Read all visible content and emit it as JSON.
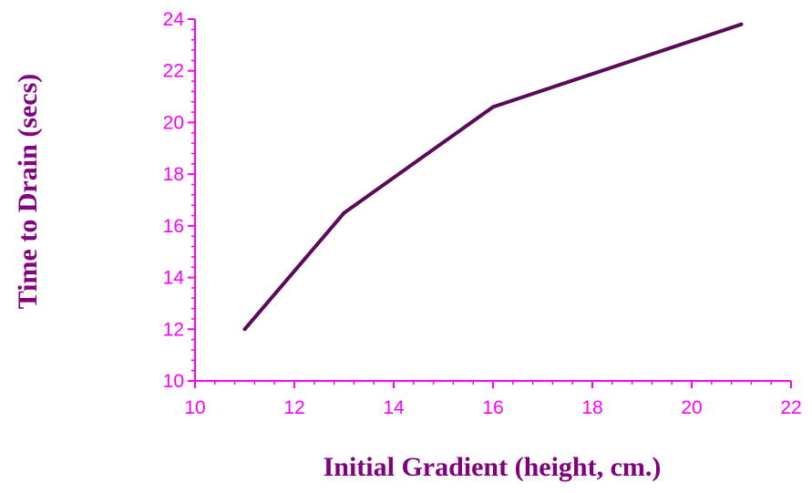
{
  "chart_data": {
    "type": "line",
    "xlabel": "Initial Gradient (height, cm.)",
    "ylabel": "Time to Drain (secs)",
    "xlim": [
      10,
      22
    ],
    "ylim": [
      10,
      24
    ],
    "x_ticks": [
      10,
      12,
      14,
      16,
      18,
      20,
      22
    ],
    "y_ticks": [
      10,
      12,
      14,
      16,
      18,
      20,
      22,
      24
    ],
    "x_tick_labels": [
      "10",
      "12",
      "14",
      "16",
      "18",
      "20",
      "22"
    ],
    "y_tick_labels": [
      "10",
      "12",
      "14",
      "16",
      "18",
      "20",
      "22",
      "24"
    ],
    "minor_ticks_per_major": 5,
    "grid": false,
    "series": [
      {
        "x": [
          11,
          13,
          16,
          21
        ],
        "y": [
          12.0,
          16.5,
          20.6,
          23.8
        ]
      }
    ]
  },
  "colors": {
    "axis": "#ff00ff",
    "tick_labels": "#ff00ff",
    "line": "#5a0a5a",
    "axis_titles": "#800080"
  }
}
